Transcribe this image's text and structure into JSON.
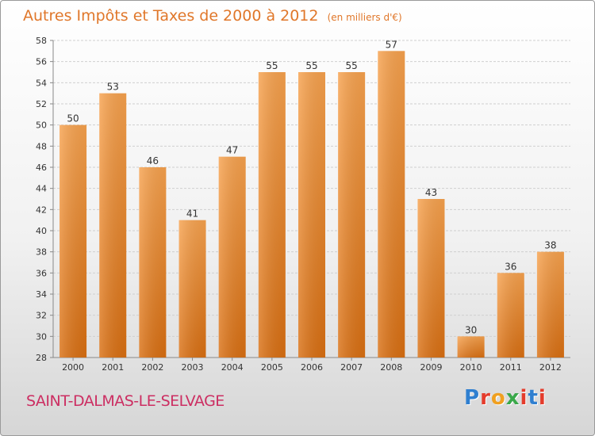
{
  "chart_data": {
    "type": "bar",
    "title": "Autres Impôts et Taxes de 2000 à 2012",
    "subtitle": "(en milliers d'€)",
    "categories": [
      "2000",
      "2001",
      "2002",
      "2003",
      "2004",
      "2005",
      "2006",
      "2007",
      "2008",
      "2009",
      "2010",
      "2011",
      "2012"
    ],
    "values": [
      50,
      53,
      46,
      41,
      47,
      55,
      55,
      55,
      57,
      43,
      30,
      36,
      38
    ],
    "ylim": [
      28,
      58
    ],
    "yticks": [
      28,
      30,
      32,
      34,
      36,
      38,
      40,
      42,
      44,
      46,
      48,
      50,
      52,
      54,
      56,
      58
    ],
    "grid": true,
    "bar_color": "#f08a2a",
    "xlabel": "",
    "ylabel": ""
  },
  "footer": {
    "commune": "SAINT-DALMAS-LE-SELVAGE",
    "brand": "Proxiti",
    "brand_colors": [
      "#2f7fd0",
      "#e43c2c",
      "#f0a020",
      "#3aa84a",
      "#e43c2c",
      "#2f7fd0",
      "#e43c2c"
    ]
  }
}
